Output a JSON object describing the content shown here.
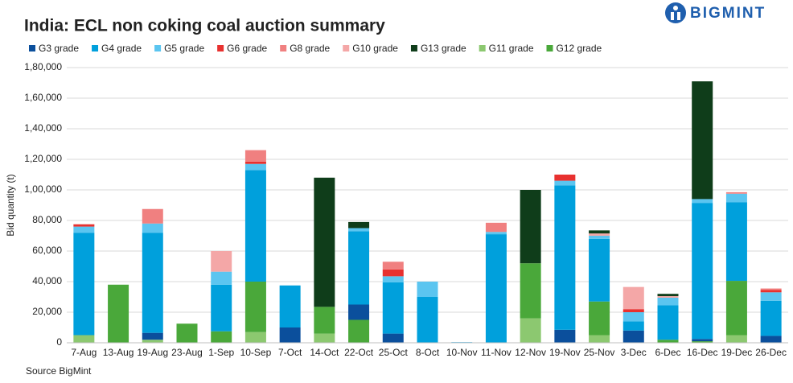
{
  "logo": "BIGMINT",
  "chart_data": {
    "type": "stacked_bar",
    "title": "India: ECL non coking coal auction summary",
    "y_label": "Bid quantity (t)",
    "source": "Source BigMint",
    "categories": [
      "7-Aug",
      "13-Aug",
      "19-Aug",
      "23-Aug",
      "1-Sep",
      "10-Sep",
      "7-Oct",
      "14-Oct",
      "22-Oct",
      "25-Oct",
      "8-Oct",
      "10-Nov",
      "11-Nov",
      "12-Nov",
      "19-Nov",
      "25-Nov",
      "3-Dec",
      "6-Dec",
      "16-Dec",
      "19-Dec",
      "26-Dec"
    ],
    "series": [
      {
        "name": "G3 grade",
        "color": "#0b4f9c",
        "values": [
          0,
          0,
          4500,
          0,
          0,
          0,
          10000,
          0,
          10000,
          6000,
          0,
          0,
          0,
          0,
          8500,
          0,
          8000,
          0,
          1500,
          0,
          4500
        ]
      },
      {
        "name": "G4 grade",
        "color": "#00a0dc",
        "values": [
          67000,
          0,
          65500,
          0,
          30500,
          73000,
          27500,
          0,
          48000,
          33500,
          30000,
          0,
          71000,
          0,
          94500,
          41000,
          6000,
          22500,
          89000,
          51500,
          23000
        ]
      },
      {
        "name": "G5 grade",
        "color": "#5bc5f0",
        "values": [
          4000,
          0,
          6000,
          0,
          8500,
          4000,
          0,
          0,
          2000,
          4000,
          10000,
          500,
          1500,
          0,
          3000,
          2000,
          6000,
          5000,
          2500,
          5500,
          5500
        ]
      },
      {
        "name": "G6 grade",
        "color": "#e8312f",
        "values": [
          1500,
          0,
          0,
          0,
          0,
          1500,
          0,
          0,
          0,
          4500,
          0,
          0,
          0,
          0,
          4000,
          0,
          2000,
          0,
          0,
          0,
          1500
        ]
      },
      {
        "name": "G8 grade",
        "color": "#f08080",
        "values": [
          0,
          0,
          9500,
          0,
          0,
          7500,
          0,
          0,
          0,
          5000,
          0,
          0,
          6000,
          0,
          0,
          0,
          0,
          0,
          0,
          1000,
          1000
        ]
      },
      {
        "name": "G10 grade",
        "color": "#f4a7a7",
        "values": [
          0,
          0,
          0,
          0,
          13500,
          0,
          0,
          0,
          0,
          0,
          0,
          0,
          0,
          0,
          0,
          1500,
          14500,
          1000,
          0,
          0,
          0
        ]
      },
      {
        "name": "G13 grade",
        "color": "#0f3d1a",
        "values": [
          0,
          0,
          0,
          0,
          0,
          0,
          0,
          84500,
          4000,
          0,
          0,
          0,
          0,
          48000,
          0,
          2000,
          0,
          1500,
          77000,
          0,
          0
        ]
      },
      {
        "name": "G11 grade",
        "color": "#8cc870",
        "values": [
          5000,
          0,
          2000,
          0,
          0,
          7000,
          0,
          6000,
          0,
          0,
          0,
          0,
          0,
          16000,
          0,
          5000,
          0,
          0,
          0,
          5000,
          0
        ]
      },
      {
        "name": "G12 grade",
        "color": "#4aa83a",
        "values": [
          0,
          38000,
          0,
          12500,
          7500,
          33000,
          0,
          17500,
          15000,
          0,
          0,
          0,
          0,
          36000,
          0,
          22000,
          0,
          2000,
          1000,
          35500,
          0
        ]
      }
    ],
    "ylim": [
      0,
      180000
    ],
    "yticks": [
      0,
      {
        "value": 20000,
        "label": "20,000"
      },
      {
        "value": 40000,
        "label": "40,000"
      },
      {
        "value": 60000,
        "label": "60,000"
      },
      {
        "value": 80000,
        "label": "80,000"
      },
      {
        "value": 100000,
        "label": "1,00,000"
      },
      {
        "value": 120000,
        "label": "1,20,000"
      },
      {
        "value": 140000,
        "label": "1,40,000"
      },
      {
        "value": 160000,
        "label": "1,60,000"
      },
      {
        "value": 180000,
        "label": "1,80,000"
      }
    ],
    "grid": true
  }
}
